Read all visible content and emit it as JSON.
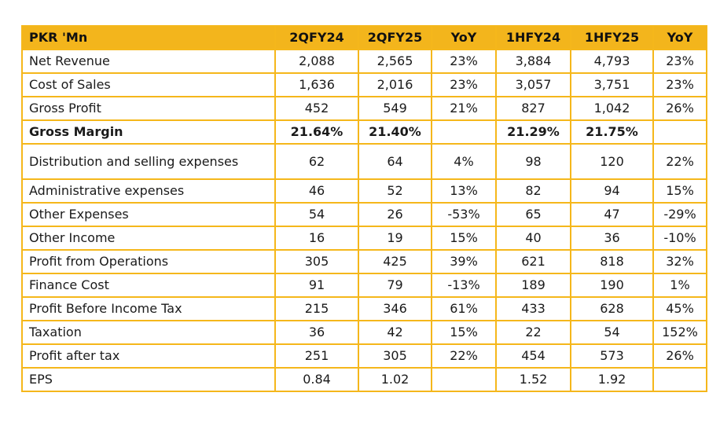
{
  "table": {
    "headers": [
      "PKR 'Mn",
      "2QFY24",
      "2QFY25",
      "YoY",
      "1HFY24",
      "1HFY25",
      "YoY"
    ],
    "rows": [
      {
        "label": "Net Revenue",
        "values": [
          "2,088",
          "2,565",
          "23%",
          "3,884",
          "4,793",
          "23%"
        ]
      },
      {
        "label": "Cost of Sales",
        "values": [
          "1,636",
          "2,016",
          "23%",
          "3,057",
          "3,751",
          "23%"
        ]
      },
      {
        "label": "Gross Profit",
        "values": [
          "452",
          "549",
          "21%",
          "827",
          "1,042",
          "26%"
        ]
      },
      {
        "label": "Gross Margin",
        "values": [
          "21.64%",
          "21.40%",
          "",
          "21.29%",
          "21.75%",
          ""
        ],
        "bold": true
      },
      {
        "label": "Distribution and selling expenses",
        "values": [
          "62",
          "64",
          "4%",
          "98",
          "120",
          "22%"
        ]
      },
      {
        "label": "Administrative expenses",
        "values": [
          "46",
          "52",
          "13%",
          "82",
          "94",
          "15%"
        ]
      },
      {
        "label": "Other Expenses",
        "values": [
          "54",
          "26",
          "-53%",
          "65",
          "47",
          "-29%"
        ]
      },
      {
        "label": "Other Income",
        "values": [
          "16",
          "19",
          "15%",
          "40",
          "36",
          "-10%"
        ]
      },
      {
        "label": "Profit from Operations",
        "values": [
          "305",
          "425",
          "39%",
          "621",
          "818",
          "32%"
        ]
      },
      {
        "label": "Finance Cost",
        "values": [
          "91",
          "79",
          "-13%",
          "189",
          "190",
          "1%"
        ]
      },
      {
        "label": "Profit Before Income Tax",
        "values": [
          "215",
          "346",
          "61%",
          "433",
          "628",
          "45%"
        ]
      },
      {
        "label": "Taxation",
        "values": [
          "36",
          "42",
          "15%",
          "22",
          "54",
          "152%"
        ]
      },
      {
        "label": "Profit after tax",
        "values": [
          "251",
          "305",
          "22%",
          "454",
          "573",
          "26%"
        ]
      },
      {
        "label": "EPS",
        "values": [
          "0.84",
          "1.02",
          "",
          "1.52",
          "1.92",
          ""
        ]
      }
    ]
  },
  "colors": {
    "header_bg": "#f3b51c",
    "border": "#f5b71b"
  }
}
